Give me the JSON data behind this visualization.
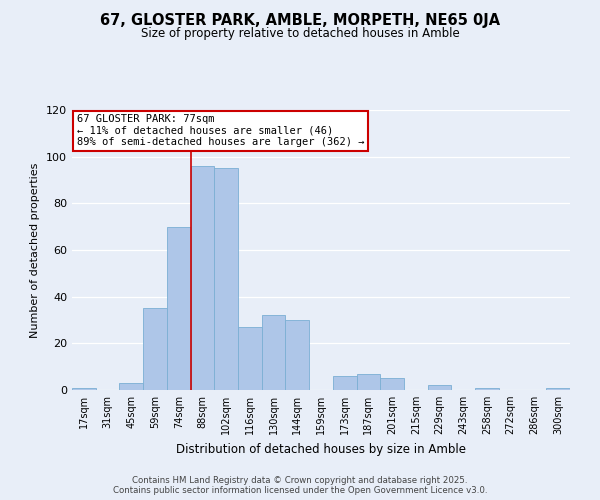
{
  "title": "67, GLOSTER PARK, AMBLE, MORPETH, NE65 0JA",
  "subtitle": "Size of property relative to detached houses in Amble",
  "xlabel": "Distribution of detached houses by size in Amble",
  "ylabel": "Number of detached properties",
  "bin_labels": [
    "17sqm",
    "31sqm",
    "45sqm",
    "59sqm",
    "74sqm",
    "88sqm",
    "102sqm",
    "116sqm",
    "130sqm",
    "144sqm",
    "159sqm",
    "173sqm",
    "187sqm",
    "201sqm",
    "215sqm",
    "229sqm",
    "243sqm",
    "258sqm",
    "272sqm",
    "286sqm",
    "300sqm"
  ],
  "bar_heights": [
    1,
    0,
    3,
    35,
    70,
    96,
    95,
    27,
    32,
    30,
    0,
    6,
    7,
    5,
    0,
    2,
    0,
    1,
    0,
    0,
    1
  ],
  "bar_color": "#aec6e8",
  "bar_edge_color": "#7bafd4",
  "vline_x": 4.5,
  "vline_color": "#cc0000",
  "annotation_title": "67 GLOSTER PARK: 77sqm",
  "annotation_line1": "← 11% of detached houses are smaller (46)",
  "annotation_line2": "89% of semi-detached houses are larger (362) →",
  "annotation_box_color": "#ffffff",
  "annotation_box_edge": "#cc0000",
  "ylim": [
    0,
    120
  ],
  "yticks": [
    0,
    20,
    40,
    60,
    80,
    100,
    120
  ],
  "footer1": "Contains HM Land Registry data © Crown copyright and database right 2025.",
  "footer2": "Contains public sector information licensed under the Open Government Licence v3.0.",
  "background_color": "#e8eef8"
}
